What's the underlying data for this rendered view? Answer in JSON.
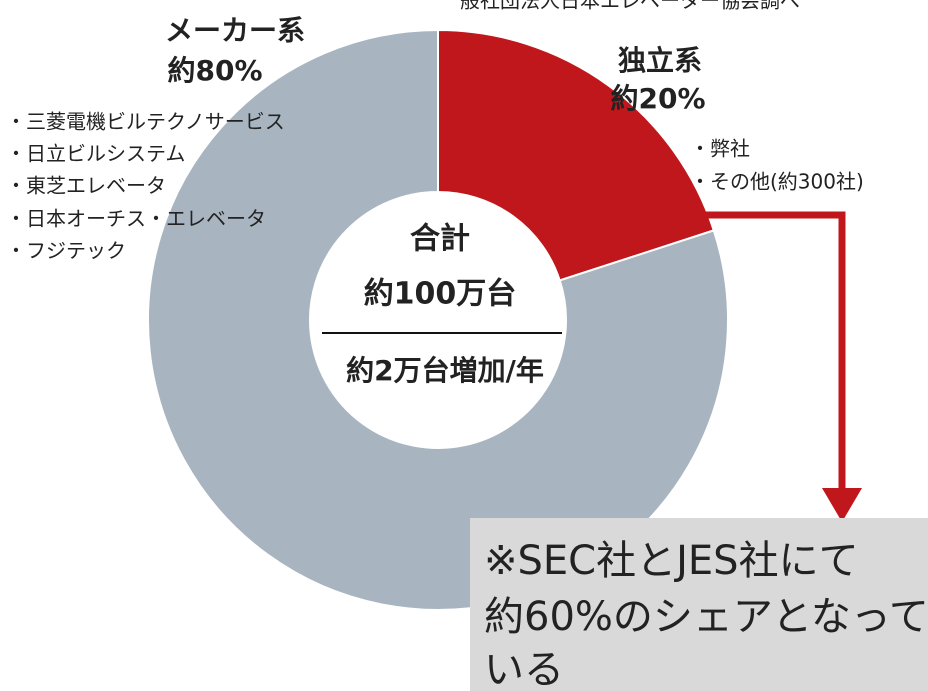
{
  "chart_data": {
    "type": "donut",
    "source": "般社団法人日本エレベーター協会調べ",
    "categories": [
      "独立系",
      "メーカー系"
    ],
    "values": [
      20,
      80
    ],
    "value_labels": [
      "約20%",
      "約80%"
    ],
    "colors": [
      "#c0171c",
      "#a8b5c1"
    ],
    "companies": [
      [
        "・弊社",
        "・その他(約300社)"
      ],
      [
        "・三菱電機ビルテクノサービス",
        "・日立ビルシステム",
        "・東芝エレベータ",
        "・日本オーチス・エレベータ",
        "・フジテック"
      ]
    ],
    "center_label": [
      "合計",
      "約100万台"
    ],
    "center_sublabel": "約2万台増加/年",
    "note": [
      "※SEC社とJES社にて",
      "約60%のシェアとなって",
      "いる"
    ]
  }
}
